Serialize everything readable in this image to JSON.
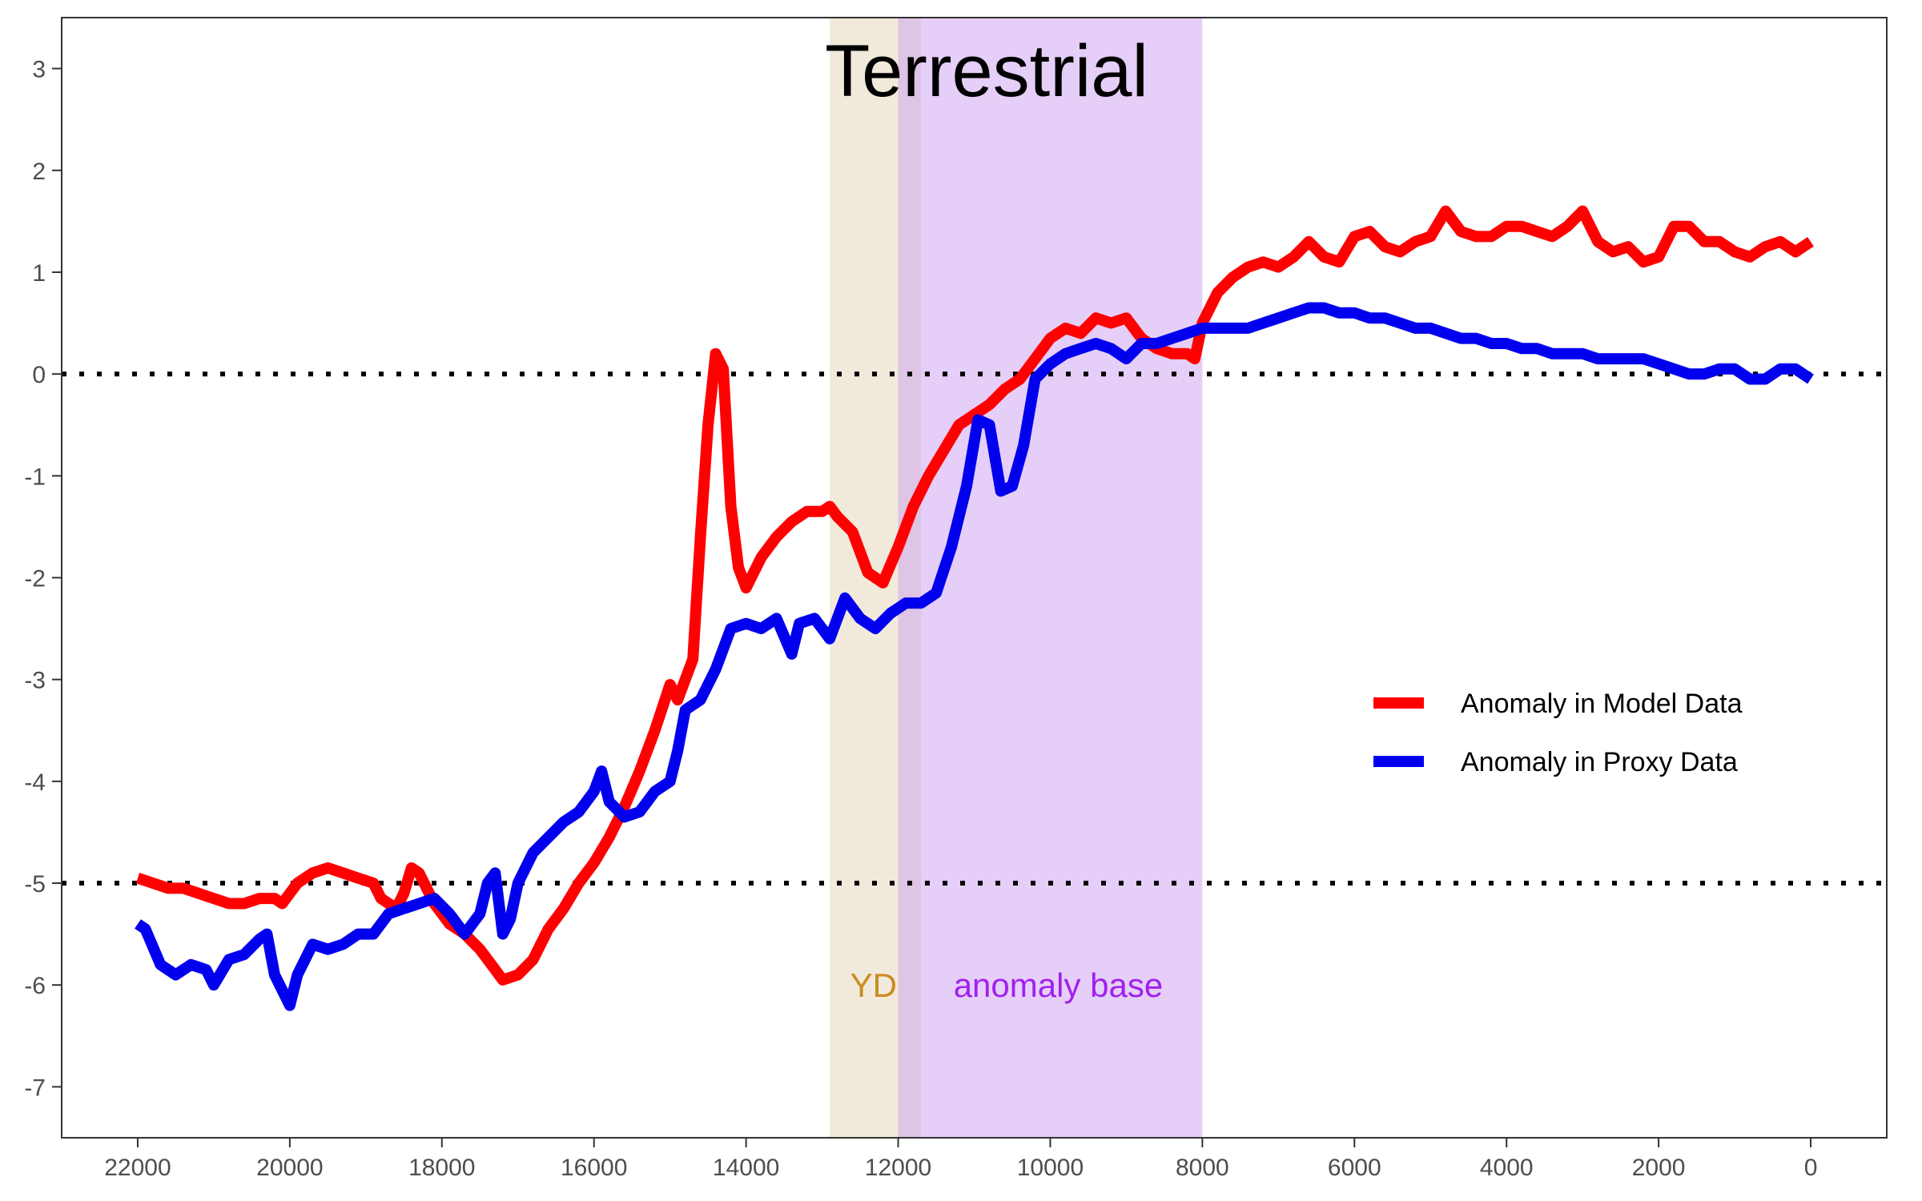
{
  "chart_data": {
    "type": "line",
    "title": "Terrestrial",
    "xlabel": "",
    "ylabel": "",
    "x_reversed": true,
    "xlim": [
      23000,
      -1000
    ],
    "ylim": [
      -7.5,
      3.5
    ],
    "x_ticks": [
      22000,
      20000,
      18000,
      16000,
      14000,
      12000,
      10000,
      8000,
      6000,
      4000,
      2000,
      0
    ],
    "x_tick_labels": [
      "22000",
      "20000",
      "18000",
      "16000",
      "14000",
      "12000",
      "10000",
      "8000",
      "6000",
      "4000",
      "2000",
      "0"
    ],
    "y_ticks": [
      3,
      2,
      1,
      0,
      -1,
      -2,
      -3,
      -4,
      -5,
      -6,
      -7
    ],
    "y_tick_labels": [
      "3",
      "2",
      "1",
      "0",
      "-1",
      "-2",
      "-3",
      "-4",
      "-5",
      "-6",
      "-7"
    ],
    "grid": false,
    "legend_position": "right",
    "reference_lines": [
      {
        "y": 0,
        "style": "dotted",
        "color": "#000000"
      },
      {
        "y": -5,
        "style": "dotted",
        "color": "#000000"
      }
    ],
    "bands": [
      {
        "label": "YD",
        "x_start": 12900,
        "x_end": 11700,
        "color": "#e6d8bd",
        "label_color": "#cc8a20",
        "opacity": 0.55
      },
      {
        "label": "anomaly base",
        "x_start": 12000,
        "x_end": 8000,
        "color": "#cc9ef0",
        "label_color": "#a020f0",
        "opacity": 0.5
      }
    ],
    "series": [
      {
        "name": "Anomaly in Model Data",
        "color": "#ff0000",
        "points": [
          [
            22000,
            -4.95
          ],
          [
            21800,
            -5.0
          ],
          [
            21600,
            -5.05
          ],
          [
            21400,
            -5.05
          ],
          [
            21200,
            -5.1
          ],
          [
            21000,
            -5.15
          ],
          [
            20800,
            -5.2
          ],
          [
            20600,
            -5.2
          ],
          [
            20400,
            -5.15
          ],
          [
            20200,
            -5.15
          ],
          [
            20100,
            -5.2
          ],
          [
            19900,
            -5.0
          ],
          [
            19700,
            -4.9
          ],
          [
            19500,
            -4.85
          ],
          [
            19300,
            -4.9
          ],
          [
            19100,
            -4.95
          ],
          [
            18900,
            -5.0
          ],
          [
            18800,
            -5.15
          ],
          [
            18600,
            -5.25
          ],
          [
            18500,
            -5.1
          ],
          [
            18400,
            -4.85
          ],
          [
            18300,
            -4.9
          ],
          [
            18100,
            -5.2
          ],
          [
            17900,
            -5.4
          ],
          [
            17700,
            -5.5
          ],
          [
            17500,
            -5.65
          ],
          [
            17300,
            -5.85
          ],
          [
            17200,
            -5.95
          ],
          [
            17000,
            -5.9
          ],
          [
            16800,
            -5.75
          ],
          [
            16600,
            -5.45
          ],
          [
            16400,
            -5.25
          ],
          [
            16200,
            -5.0
          ],
          [
            16000,
            -4.8
          ],
          [
            15800,
            -4.55
          ],
          [
            15600,
            -4.25
          ],
          [
            15400,
            -3.9
          ],
          [
            15200,
            -3.5
          ],
          [
            15000,
            -3.05
          ],
          [
            14900,
            -3.2
          ],
          [
            14700,
            -2.8
          ],
          [
            14600,
            -1.6
          ],
          [
            14500,
            -0.5
          ],
          [
            14400,
            0.2
          ],
          [
            14300,
            0.05
          ],
          [
            14200,
            -1.3
          ],
          [
            14100,
            -1.9
          ],
          [
            14000,
            -2.1
          ],
          [
            13800,
            -1.8
          ],
          [
            13600,
            -1.6
          ],
          [
            13400,
            -1.45
          ],
          [
            13200,
            -1.35
          ],
          [
            13000,
            -1.35
          ],
          [
            12900,
            -1.3
          ],
          [
            12800,
            -1.4
          ],
          [
            12600,
            -1.55
          ],
          [
            12400,
            -1.95
          ],
          [
            12200,
            -2.05
          ],
          [
            12000,
            -1.7
          ],
          [
            11800,
            -1.3
          ],
          [
            11600,
            -1.0
          ],
          [
            11400,
            -0.75
          ],
          [
            11200,
            -0.5
          ],
          [
            11000,
            -0.4
          ],
          [
            10800,
            -0.3
          ],
          [
            10600,
            -0.15
          ],
          [
            10400,
            -0.05
          ],
          [
            10200,
            0.15
          ],
          [
            10000,
            0.35
          ],
          [
            9800,
            0.45
          ],
          [
            9600,
            0.4
          ],
          [
            9400,
            0.55
          ],
          [
            9200,
            0.5
          ],
          [
            9000,
            0.55
          ],
          [
            8800,
            0.35
          ],
          [
            8600,
            0.25
          ],
          [
            8400,
            0.2
          ],
          [
            8200,
            0.2
          ],
          [
            8100,
            0.15
          ],
          [
            8000,
            0.5
          ],
          [
            7800,
            0.8
          ],
          [
            7600,
            0.95
          ],
          [
            7400,
            1.05
          ],
          [
            7200,
            1.1
          ],
          [
            7000,
            1.05
          ],
          [
            6800,
            1.15
          ],
          [
            6600,
            1.3
          ],
          [
            6400,
            1.15
          ],
          [
            6200,
            1.1
          ],
          [
            6000,
            1.35
          ],
          [
            5800,
            1.4
          ],
          [
            5600,
            1.25
          ],
          [
            5400,
            1.2
          ],
          [
            5200,
            1.3
          ],
          [
            5000,
            1.35
          ],
          [
            4800,
            1.6
          ],
          [
            4600,
            1.4
          ],
          [
            4400,
            1.35
          ],
          [
            4200,
            1.35
          ],
          [
            4000,
            1.45
          ],
          [
            3800,
            1.45
          ],
          [
            3600,
            1.4
          ],
          [
            3400,
            1.35
          ],
          [
            3200,
            1.45
          ],
          [
            3000,
            1.6
          ],
          [
            2800,
            1.3
          ],
          [
            2600,
            1.2
          ],
          [
            2400,
            1.25
          ],
          [
            2200,
            1.1
          ],
          [
            2000,
            1.15
          ],
          [
            1800,
            1.45
          ],
          [
            1600,
            1.45
          ],
          [
            1400,
            1.3
          ],
          [
            1200,
            1.3
          ],
          [
            1000,
            1.2
          ],
          [
            800,
            1.15
          ],
          [
            600,
            1.25
          ],
          [
            400,
            1.3
          ],
          [
            200,
            1.2
          ],
          [
            0,
            1.3
          ]
        ]
      },
      {
        "name": "Anomaly in Proxy Data",
        "color": "#0000ee",
        "points": [
          [
            22000,
            -5.4
          ],
          [
            21900,
            -5.45
          ],
          [
            21700,
            -5.8
          ],
          [
            21500,
            -5.9
          ],
          [
            21300,
            -5.8
          ],
          [
            21100,
            -5.85
          ],
          [
            21000,
            -6.0
          ],
          [
            20800,
            -5.75
          ],
          [
            20600,
            -5.7
          ],
          [
            20400,
            -5.55
          ],
          [
            20300,
            -5.5
          ],
          [
            20200,
            -5.9
          ],
          [
            20000,
            -6.2
          ],
          [
            19900,
            -5.9
          ],
          [
            19700,
            -5.6
          ],
          [
            19500,
            -5.65
          ],
          [
            19300,
            -5.6
          ],
          [
            19100,
            -5.5
          ],
          [
            18900,
            -5.5
          ],
          [
            18700,
            -5.3
          ],
          [
            18500,
            -5.25
          ],
          [
            18300,
            -5.2
          ],
          [
            18100,
            -5.15
          ],
          [
            17900,
            -5.3
          ],
          [
            17700,
            -5.5
          ],
          [
            17500,
            -5.3
          ],
          [
            17400,
            -5.0
          ],
          [
            17300,
            -4.9
          ],
          [
            17200,
            -5.5
          ],
          [
            17100,
            -5.35
          ],
          [
            17000,
            -5.0
          ],
          [
            16800,
            -4.7
          ],
          [
            16600,
            -4.55
          ],
          [
            16400,
            -4.4
          ],
          [
            16200,
            -4.3
          ],
          [
            16000,
            -4.1
          ],
          [
            15900,
            -3.9
          ],
          [
            15800,
            -4.2
          ],
          [
            15600,
            -4.35
          ],
          [
            15400,
            -4.3
          ],
          [
            15200,
            -4.1
          ],
          [
            15000,
            -4.0
          ],
          [
            14900,
            -3.7
          ],
          [
            14800,
            -3.3
          ],
          [
            14600,
            -3.2
          ],
          [
            14400,
            -2.9
          ],
          [
            14200,
            -2.5
          ],
          [
            14000,
            -2.45
          ],
          [
            13800,
            -2.5
          ],
          [
            13600,
            -2.4
          ],
          [
            13400,
            -2.75
          ],
          [
            13300,
            -2.45
          ],
          [
            13100,
            -2.4
          ],
          [
            12900,
            -2.6
          ],
          [
            12700,
            -2.2
          ],
          [
            12500,
            -2.4
          ],
          [
            12300,
            -2.5
          ],
          [
            12100,
            -2.35
          ],
          [
            11900,
            -2.25
          ],
          [
            11700,
            -2.25
          ],
          [
            11500,
            -2.15
          ],
          [
            11300,
            -1.7
          ],
          [
            11100,
            -1.1
          ],
          [
            10950,
            -0.45
          ],
          [
            10800,
            -0.5
          ],
          [
            10650,
            -1.15
          ],
          [
            10500,
            -1.1
          ],
          [
            10350,
            -0.7
          ],
          [
            10200,
            -0.05
          ],
          [
            10000,
            0.1
          ],
          [
            9800,
            0.2
          ],
          [
            9600,
            0.25
          ],
          [
            9400,
            0.3
          ],
          [
            9200,
            0.25
          ],
          [
            9000,
            0.15
          ],
          [
            8800,
            0.3
          ],
          [
            8600,
            0.3
          ],
          [
            8400,
            0.35
          ],
          [
            8200,
            0.4
          ],
          [
            8000,
            0.45
          ],
          [
            7800,
            0.45
          ],
          [
            7600,
            0.45
          ],
          [
            7400,
            0.45
          ],
          [
            7200,
            0.5
          ],
          [
            7000,
            0.55
          ],
          [
            6800,
            0.6
          ],
          [
            6600,
            0.65
          ],
          [
            6400,
            0.65
          ],
          [
            6200,
            0.6
          ],
          [
            6000,
            0.6
          ],
          [
            5800,
            0.55
          ],
          [
            5600,
            0.55
          ],
          [
            5400,
            0.5
          ],
          [
            5200,
            0.45
          ],
          [
            5000,
            0.45
          ],
          [
            4800,
            0.4
          ],
          [
            4600,
            0.35
          ],
          [
            4400,
            0.35
          ],
          [
            4200,
            0.3
          ],
          [
            4000,
            0.3
          ],
          [
            3800,
            0.25
          ],
          [
            3600,
            0.25
          ],
          [
            3400,
            0.2
          ],
          [
            3200,
            0.2
          ],
          [
            3000,
            0.2
          ],
          [
            2800,
            0.15
          ],
          [
            2600,
            0.15
          ],
          [
            2400,
            0.15
          ],
          [
            2200,
            0.15
          ],
          [
            2000,
            0.1
          ],
          [
            1800,
            0.05
          ],
          [
            1600,
            0.0
          ],
          [
            1400,
            0.0
          ],
          [
            1200,
            0.05
          ],
          [
            1000,
            0.05
          ],
          [
            800,
            -0.05
          ],
          [
            600,
            -0.05
          ],
          [
            400,
            0.05
          ],
          [
            200,
            0.05
          ],
          [
            0,
            -0.05
          ]
        ]
      }
    ]
  }
}
